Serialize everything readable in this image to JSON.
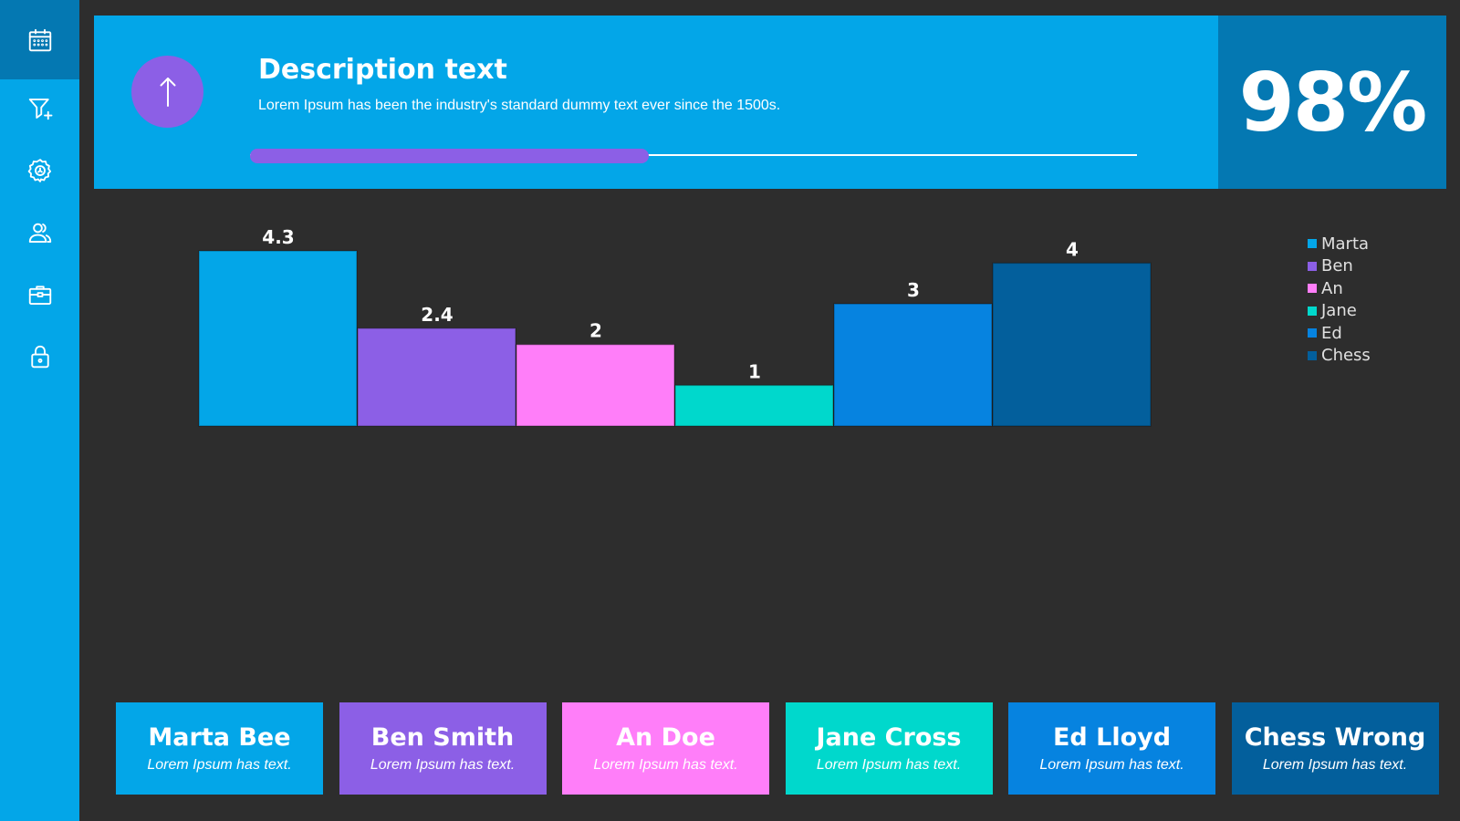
{
  "sidebar": {
    "items": [
      {
        "icon": "calendar-icon",
        "active": true
      },
      {
        "icon": "funnel-plus-icon",
        "active": false
      },
      {
        "icon": "gear-icon",
        "active": false
      },
      {
        "icon": "users-icon",
        "active": false
      },
      {
        "icon": "briefcase-icon",
        "active": false
      },
      {
        "icon": "lock-icon",
        "active": false
      }
    ]
  },
  "header": {
    "icon": "arrow-up-icon",
    "title": "Description text",
    "text": "Lorem Ipsum has been the industry's standard dummy text ever since the 1500s.",
    "progress": 0.45,
    "percent": "98%"
  },
  "colors": {
    "marta": "#03a6e8",
    "ben": "#8c5fe6",
    "an": "#ff7ef9",
    "jane": "#00d8cc",
    "ed": "#0683e0",
    "chess": "#035f9c",
    "background": "#2d2d2d",
    "accent_dark": "#0478b2"
  },
  "chart_data": {
    "type": "bar",
    "categories": [
      "Marta",
      "Ben",
      "An",
      "Jane",
      "Ed",
      "Chess"
    ],
    "values": [
      4.3,
      2.4,
      2,
      1,
      3,
      4
    ],
    "data_labels": [
      "4.3",
      "2.4",
      "2",
      "1",
      "3",
      "4"
    ],
    "colors": [
      "#03a6e8",
      "#8c5fe6",
      "#ff7ef9",
      "#00d8cc",
      "#0683e0",
      "#035f9c"
    ],
    "ylim": [
      0,
      4.3
    ],
    "legend": "right",
    "grid": false
  },
  "legend": {
    "items": [
      "Marta",
      "Ben",
      "An",
      "Jane",
      "Ed",
      "Chess"
    ]
  },
  "cards": [
    {
      "name": "Marta Bee",
      "text": "Lorem Ipsum has text.",
      "color": "#03a6e8"
    },
    {
      "name": "Ben Smith",
      "text": "Lorem Ipsum has text.",
      "color": "#8c5fe6"
    },
    {
      "name": "An Doe",
      "text": "Lorem Ipsum has text.",
      "color": "#ff7ef9"
    },
    {
      "name": "Jane Cross",
      "text": "Lorem Ipsum has text.",
      "color": "#00d8cc"
    },
    {
      "name": "Ed Lloyd",
      "text": "Lorem Ipsum has text.",
      "color": "#0683e0"
    },
    {
      "name": "Chess Wrong",
      "text": "Lorem Ipsum has text.",
      "color": "#035f9c"
    }
  ]
}
